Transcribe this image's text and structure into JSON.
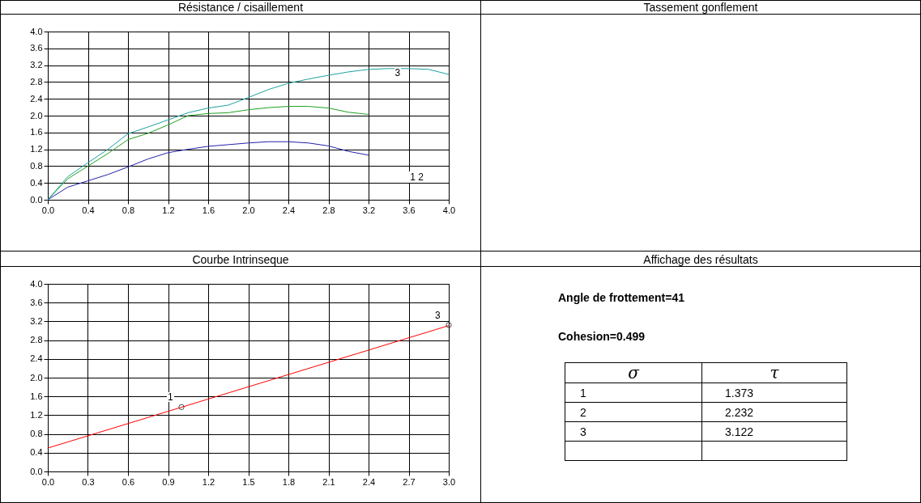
{
  "chart_data": [
    {
      "type": "line",
      "title": "Résistance / cisaillement",
      "xlim": [
        0,
        4
      ],
      "ylim": [
        0,
        4
      ],
      "grid": true,
      "xticks": [
        {
          "value": 0,
          "label": "0.0"
        },
        {
          "value": 0.4,
          "label": "0.4"
        },
        {
          "value": 0.8,
          "label": "0.8"
        },
        {
          "value": 1.2,
          "label": "1.2"
        },
        {
          "value": 1.6,
          "label": "1.6"
        },
        {
          "value": 2,
          "label": "2.0"
        },
        {
          "value": 2.4,
          "label": "2.4"
        },
        {
          "value": 2.8,
          "label": "2.8"
        },
        {
          "value": 3.2,
          "label": "3.2"
        },
        {
          "value": 3.6,
          "label": "3.6"
        },
        {
          "value": 4,
          "label": "4.0"
        }
      ],
      "yticks": [
        {
          "value": 0,
          "label": "0.0"
        },
        {
          "value": 0.4,
          "label": "0.4"
        },
        {
          "value": 0.8,
          "label": "0.8"
        },
        {
          "value": 1.2,
          "label": "1.2"
        },
        {
          "value": 1.6,
          "label": "1.6"
        },
        {
          "value": 2,
          "label": "2.0"
        },
        {
          "value": 2.4,
          "label": "2.4"
        },
        {
          "value": 2.8,
          "label": "2.8"
        },
        {
          "value": 3.2,
          "label": "3.2"
        },
        {
          "value": 3.6,
          "label": "3.6"
        },
        {
          "value": 4,
          "label": "4.0"
        }
      ],
      "series": [
        {
          "color": "#2222a8",
          "x": [
            0,
            0.2,
            0.4,
            0.6,
            0.8,
            1.0,
            1.2,
            1.4,
            1.6,
            1.8,
            2.0,
            2.2,
            2.4,
            2.6,
            2.8,
            3.0,
            3.2
          ],
          "values": [
            0,
            0.3,
            0.45,
            0.6,
            0.78,
            0.97,
            1.12,
            1.2,
            1.27,
            1.31,
            1.35,
            1.38,
            1.38,
            1.35,
            1.28,
            1.15,
            1.06
          ]
        },
        {
          "color": "#22a022",
          "x": [
            0,
            0.2,
            0.4,
            0.6,
            0.8,
            1.0,
            1.2,
            1.4,
            1.6,
            1.8,
            2.0,
            2.2,
            2.4,
            2.6,
            2.8,
            3.0,
            3.2
          ],
          "values": [
            0,
            0.5,
            0.8,
            1.1,
            1.43,
            1.58,
            1.78,
            2.0,
            2.05,
            2.07,
            2.14,
            2.19,
            2.22,
            2.22,
            2.18,
            2.08,
            2.03
          ]
        },
        {
          "color": "#20a0a0",
          "x": [
            0,
            0.2,
            0.4,
            0.6,
            0.8,
            1.0,
            1.2,
            1.4,
            1.6,
            1.8,
            2.0,
            2.2,
            2.4,
            2.6,
            2.8,
            3.0,
            3.2,
            3.4,
            3.6,
            3.8,
            4.0
          ],
          "values": [
            0,
            0.55,
            0.88,
            1.2,
            1.57,
            1.73,
            1.9,
            2.07,
            2.18,
            2.25,
            2.43,
            2.62,
            2.77,
            2.87,
            2.96,
            3.04,
            3.1,
            3.12,
            3.12,
            3.1,
            2.98
          ]
        }
      ],
      "annotations": [
        "1",
        "2",
        {
          "text": "3",
          "x": 3.6,
          "y": 3.12
        }
      ]
    },
    {
      "type": "other",
      "title": "Tassement gonflement"
    },
    {
      "type": "line",
      "title": "Courbe Intrinseque",
      "xlim": [
        0,
        3
      ],
      "ylim": [
        0,
        4
      ],
      "grid": true,
      "xticks": [
        {
          "value": 0,
          "label": "0.0"
        },
        {
          "value": 0.3,
          "label": "0.3"
        },
        {
          "value": 0.6,
          "label": "0.6"
        },
        {
          "value": 0.9,
          "label": "0.9"
        },
        {
          "value": 1.2,
          "label": "1.2"
        },
        {
          "value": 1.5,
          "label": "1.5"
        },
        {
          "value": 1.8,
          "label": "1.8"
        },
        {
          "value": 2.1,
          "label": "2.1"
        },
        {
          "value": 2.4,
          "label": "2.4"
        },
        {
          "value": 2.7,
          "label": "2.7"
        },
        {
          "value": 3,
          "label": "3.0"
        }
      ],
      "yticks": [
        {
          "value": 0,
          "label": "0.0"
        },
        {
          "value": 0.4,
          "label": "0.4"
        },
        {
          "value": 0.8,
          "label": "0.8"
        },
        {
          "value": 1.2,
          "label": "1.2"
        },
        {
          "value": 1.6,
          "label": "1.6"
        },
        {
          "value": 2,
          "label": "2.0"
        },
        {
          "value": 2.4,
          "label": "2.4"
        },
        {
          "value": 2.8,
          "label": "2.8"
        },
        {
          "value": 3.2,
          "label": "3.2"
        },
        {
          "value": 3.6,
          "label": "3.6"
        },
        {
          "value": 4,
          "label": "4.0"
        }
      ],
      "series": [
        {
          "type": "line",
          "color": "#ff0000",
          "x": [
            0,
            3
          ],
          "values": [
            0.499,
            3.11
          ]
        },
        {
          "type": "scatter",
          "marker": "circle",
          "color": "#000000",
          "x": [
            1,
            3
          ],
          "values": [
            1.373,
            3.122
          ]
        }
      ],
      "annotations": [
        {
          "text": "1",
          "x": 1,
          "y": 1.373
        },
        {
          "text": "3",
          "x": 3,
          "y": 3.122
        }
      ]
    },
    {
      "type": "other",
      "title": "Affichage des résultats",
      "annotations": [
        "Angle de frottement=41",
        "Cohesion=0.499"
      ],
      "xlabel": "σ",
      "ylabel": "τ",
      "categories": [
        "1",
        "2",
        "3",
        null
      ],
      "values": [
        1.373,
        2.232,
        3.122,
        null
      ],
      "data_labels": true
    }
  ]
}
